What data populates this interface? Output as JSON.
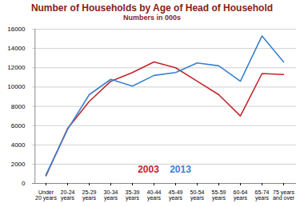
{
  "chart_data": {
    "type": "line",
    "title": "Number of Households by Age of Head of Household",
    "subtitle": "Numbers in 000s",
    "categories": [
      "Under 20 years",
      "20-24 years",
      "25-29 years",
      "30-34 years",
      "35-39 years",
      "40-44 years",
      "45-49 years",
      "50-54 years",
      "55-59 years",
      "60-64 years",
      "65-74 years",
      "75 years and over"
    ],
    "series": [
      {
        "name": "2003",
        "color": "#c0282d",
        "values": [
          800,
          5700,
          8500,
          10600,
          11500,
          12600,
          12000,
          10600,
          9200,
          7000,
          11400,
          11300
        ]
      },
      {
        "name": "2013",
        "color": "#3a82d0",
        "values": [
          900,
          5600,
          9200,
          10800,
          10100,
          11200,
          11500,
          12500,
          12200,
          10600,
          15300,
          12600
        ]
      }
    ],
    "ylim": [
      0,
      16000
    ],
    "yticks": [
      0,
      2000,
      4000,
      6000,
      8000,
      10000,
      12000,
      14000,
      16000
    ],
    "grid": true,
    "legend": "bottom"
  }
}
